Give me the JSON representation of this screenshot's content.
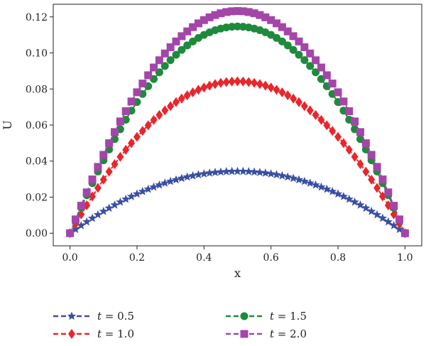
{
  "chart_data": {
    "type": "line",
    "title": "",
    "xlabel": "x",
    "ylabel": "U",
    "xlim": [
      -0.05,
      1.05
    ],
    "ylim": [
      -0.007,
      0.127
    ],
    "xticks": [
      "0.0",
      "0.2",
      "0.4",
      "0.6",
      "0.8",
      "1.0"
    ],
    "yticks": [
      "0.00",
      "0.02",
      "0.04",
      "0.06",
      "0.08",
      "0.10",
      "0.12"
    ],
    "grid": false,
    "legend": {
      "placement": "bottom-outside",
      "columns": 2
    },
    "series": [
      {
        "name": "t = 0.5",
        "name_italic": "t",
        "name_rest": " = 0.5",
        "color": "#3a4fa1",
        "marker": "star",
        "peak_x": 0.55,
        "peak_y": 0.034,
        "x": [
          0.0,
          0.05,
          0.1,
          0.15,
          0.2,
          0.25,
          0.3,
          0.35,
          0.4,
          0.45,
          0.5,
          0.55,
          0.6,
          0.65,
          0.7,
          0.75,
          0.8,
          0.85,
          0.9,
          0.95,
          1.0
        ]
      },
      {
        "name": "t = 1.0",
        "name_italic": "t",
        "name_rest": " = 1.0",
        "color": "#e8262c",
        "marker": "diamond",
        "peak_x": 0.56,
        "peak_y": 0.083,
        "x": [
          0.0,
          0.05,
          0.1,
          0.15,
          0.2,
          0.25,
          0.3,
          0.35,
          0.4,
          0.45,
          0.5,
          0.55,
          0.6,
          0.65,
          0.7,
          0.75,
          0.8,
          0.85,
          0.9,
          0.95,
          1.0
        ]
      },
      {
        "name": "t = 1.5",
        "name_italic": "t",
        "name_rest": " = 1.5",
        "color": "#1e8a3c",
        "marker": "circle",
        "peak_x": 0.56,
        "peak_y": 0.113,
        "x": [
          0.0,
          0.05,
          0.1,
          0.15,
          0.2,
          0.25,
          0.3,
          0.35,
          0.4,
          0.45,
          0.5,
          0.55,
          0.6,
          0.65,
          0.7,
          0.75,
          0.8,
          0.85,
          0.9,
          0.95,
          1.0
        ]
      },
      {
        "name": "t = 2.0",
        "name_italic": "t",
        "name_rest": " = 2.0",
        "color": "#a346a8",
        "marker": "square",
        "peak_x": 0.55,
        "peak_y": 0.122,
        "x": [
          0.0,
          0.05,
          0.1,
          0.15,
          0.2,
          0.25,
          0.3,
          0.35,
          0.4,
          0.45,
          0.5,
          0.55,
          0.6,
          0.65,
          0.7,
          0.75,
          0.8,
          0.85,
          0.9,
          0.95,
          1.0
        ]
      }
    ]
  }
}
